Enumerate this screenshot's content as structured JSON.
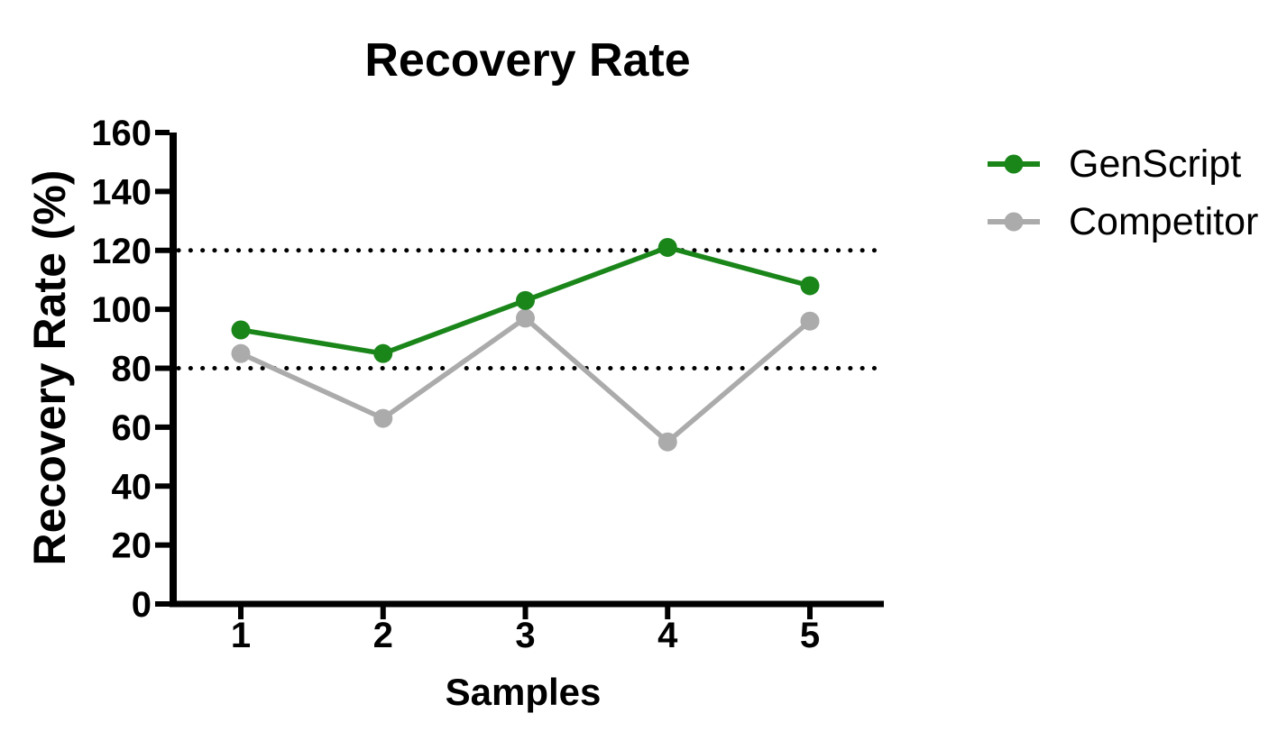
{
  "chart_data": {
    "type": "line",
    "title": "Recovery Rate",
    "xlabel": "Samples",
    "ylabel": "Recovery Rate (%)",
    "categories": [
      "1",
      "2",
      "3",
      "4",
      "5"
    ],
    "series": [
      {
        "name": "GenScript",
        "color": "#1A861A",
        "values": [
          93,
          85,
          103,
          121,
          108
        ]
      },
      {
        "name": "Competitor",
        "color": "#ABABAB",
        "values": [
          85,
          63,
          97,
          55,
          96
        ]
      }
    ],
    "reference_lines": [
      {
        "value": 80,
        "style": "dotted",
        "color": "#000000"
      },
      {
        "value": 120,
        "style": "dotted",
        "color": "#000000"
      }
    ],
    "ylim": [
      0,
      160
    ],
    "yticks": [
      0,
      20,
      40,
      60,
      80,
      100,
      120,
      140,
      160
    ],
    "grid": false,
    "legend_position": "right",
    "axis_color": "#000000",
    "marker": "filled-circle"
  }
}
